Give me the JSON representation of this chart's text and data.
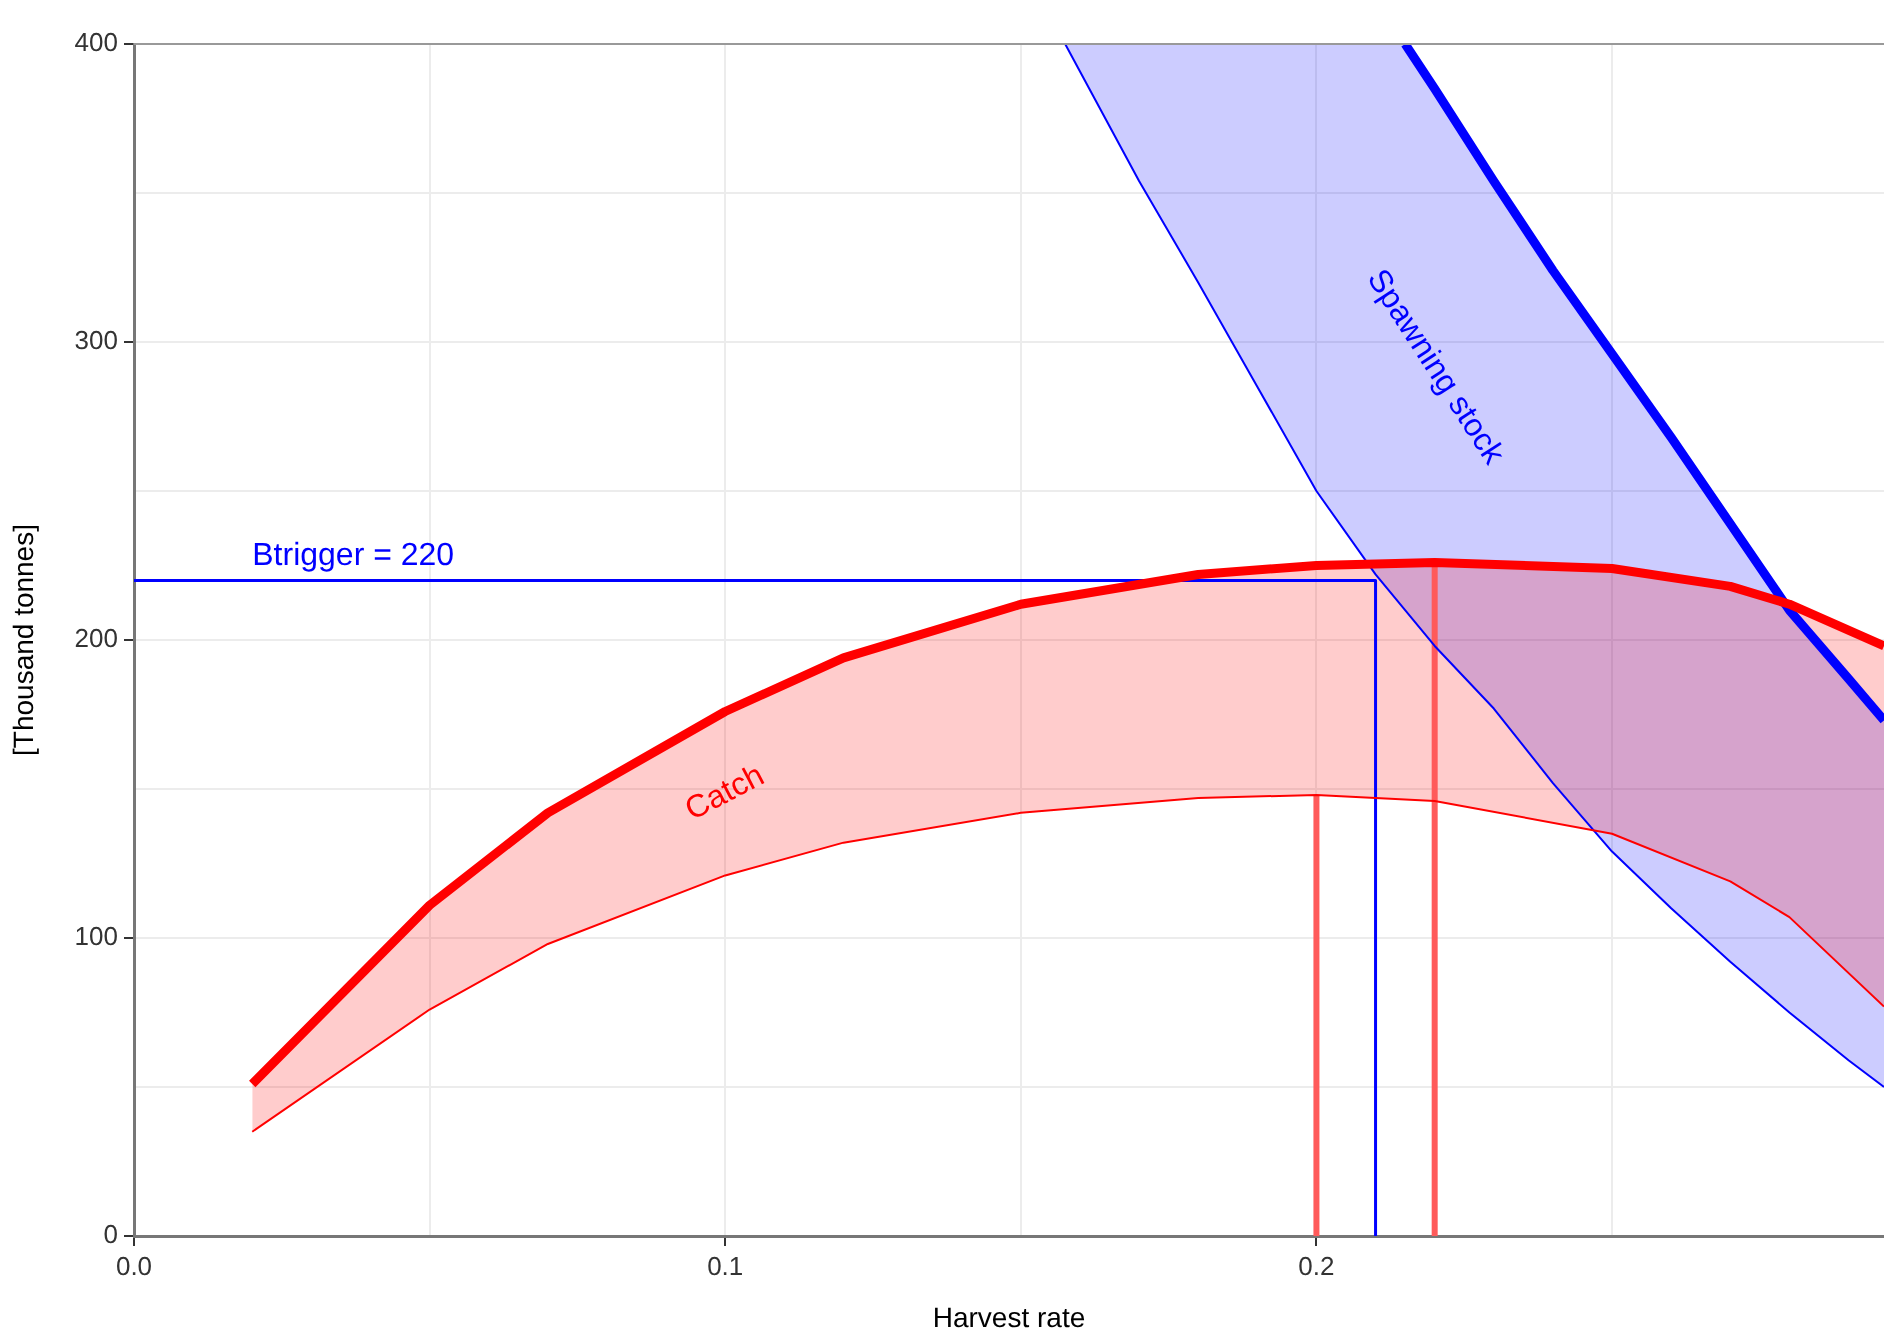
{
  "chart_data": {
    "type": "line",
    "xlabel": "Harvest rate",
    "ylabel": "[Thousand tonnes]",
    "xlim": [
      0,
      0.296
    ],
    "xticks": [
      {
        "value": 0,
        "label": "0.0"
      },
      {
        "value": 0.05,
        "label": null
      },
      0.1,
      {
        "value": 0.15,
        "label": null
      },
      0.2,
      {
        "value": 0.25,
        "label": null
      }
    ],
    "ylim": [
      0,
      400
    ],
    "yticks": [
      0,
      {
        "value": 50,
        "label": null
      },
      100,
      {
        "value": 150,
        "label": null
      },
      200,
      {
        "value": 250,
        "label": null
      },
      300,
      {
        "value": 350,
        "label": null
      },
      400
    ],
    "grid": true,
    "legend": false,
    "marker": "none",
    "series": [
      {
        "name": "Catch",
        "color": "#ff0000",
        "x": [
          0.02,
          0.05,
          0.07,
          0.1,
          0.12,
          0.15,
          0.18,
          0.2,
          0.22,
          0.25,
          0.27,
          0.28,
          0.296
        ],
        "values": [
          51,
          111,
          142,
          176,
          194,
          212,
          222,
          225,
          226,
          224,
          218,
          212,
          198
        ],
        "lower": [
          35,
          76,
          98,
          121,
          132,
          142,
          147,
          148,
          146,
          135,
          119,
          107,
          77
        ],
        "upper": [
          51,
          111,
          142,
          176,
          194,
          212,
          222,
          225,
          226,
          224,
          218,
          212,
          198
        ]
      },
      {
        "name": "Spawning stock",
        "color": "#0000ff",
        "x": [
          0.1575,
          0.17,
          0.18,
          0.19,
          0.2,
          0.21,
          0.215,
          0.22,
          0.23,
          0.24,
          0.25,
          0.26,
          0.27,
          0.28,
          0.29,
          0.296
        ],
        "values": [
          null,
          null,
          null,
          null,
          null,
          null,
          400,
          385,
          354,
          324,
          296,
          268,
          239,
          210,
          187,
          173
        ],
        "lower": [
          400,
          354,
          320,
          285,
          250,
          222,
          210,
          198,
          177,
          152,
          129,
          110,
          92,
          75,
          59,
          50
        ],
        "upper": [
          400,
          400,
          400,
          400,
          400,
          400,
          400,
          385,
          354,
          324,
          296,
          268,
          239,
          210,
          187,
          173
        ]
      },
      {
        "color": "#ff0000",
        "x": [
          0.02,
          0.05,
          0.07,
          0.1,
          0.12,
          0.15,
          0.18,
          0.2,
          0.22,
          0.25,
          0.27,
          0.28,
          0.296
        ],
        "values": [
          35,
          76,
          98,
          121,
          132,
          142,
          147,
          148,
          146,
          135,
          119,
          107,
          77
        ]
      },
      {
        "color": "#0000ff",
        "x": [
          0.1575,
          0.17,
          0.18,
          0.19,
          0.2,
          0.21,
          0.215,
          0.22,
          0.23,
          0.24,
          0.25,
          0.26,
          0.27,
          0.28,
          0.29,
          0.296
        ],
        "values": [
          400,
          354,
          320,
          285,
          250,
          222,
          210,
          198,
          177,
          152,
          129,
          110,
          92,
          75,
          59,
          50
        ]
      },
      {
        "color": "#0000ff",
        "x": [
          0,
          0.21,
          0.21
        ],
        "values": [
          220,
          220,
          0
        ]
      },
      {
        "color": "#ff5a5a",
        "x": [
          0.2,
          0.2
        ],
        "values": [
          0,
          148
        ]
      },
      {
        "color": "#ff5a5a",
        "x": [
          0.22,
          0.22
        ],
        "values": [
          0,
          226
        ]
      }
    ],
    "annotations": [
      {
        "text": "Btrigger = 220",
        "x": 0.02,
        "y": 220
      }
    ]
  }
}
